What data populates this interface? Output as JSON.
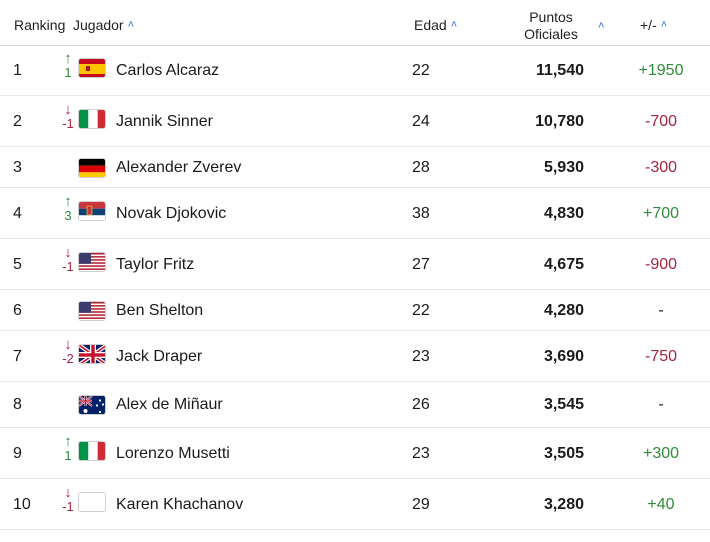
{
  "header": {
    "ranking": "Ranking",
    "player": "Jugador",
    "age": "Edad",
    "points_line1": "Puntos",
    "points_line2": "Oficiales",
    "diff": "+/-",
    "sort_icon": "chevron-up-icon",
    "accent_color": "#2d6cdf"
  },
  "colors": {
    "up": "#2e8b3a",
    "down": "#a3243f"
  },
  "rows": [
    {
      "rank": "1",
      "move_dir": "up",
      "move": "1",
      "flag": "es",
      "name": "Carlos Alcaraz",
      "age": "22",
      "points": "11,540",
      "diff": "+1950",
      "diff_type": "pos"
    },
    {
      "rank": "2",
      "move_dir": "down",
      "move": "-1",
      "flag": "it",
      "name": "Jannik Sinner",
      "age": "24",
      "points": "10,780",
      "diff": "-700",
      "diff_type": "neg"
    },
    {
      "rank": "3",
      "move_dir": "",
      "move": "",
      "flag": "de",
      "name": "Alexander Zverev",
      "age": "28",
      "points": "5,930",
      "diff": "-300",
      "diff_type": "neg"
    },
    {
      "rank": "4",
      "move_dir": "up",
      "move": "3",
      "flag": "rs",
      "name": "Novak Djokovic",
      "age": "38",
      "points": "4,830",
      "diff": "+700",
      "diff_type": "pos"
    },
    {
      "rank": "5",
      "move_dir": "down",
      "move": "-1",
      "flag": "us",
      "name": "Taylor Fritz",
      "age": "27",
      "points": "4,675",
      "diff": "-900",
      "diff_type": "neg"
    },
    {
      "rank": "6",
      "move_dir": "",
      "move": "",
      "flag": "us",
      "name": "Ben Shelton",
      "age": "22",
      "points": "4,280",
      "diff": "-",
      "diff_type": "neu"
    },
    {
      "rank": "7",
      "move_dir": "down",
      "move": "-2",
      "flag": "gb",
      "name": "Jack Draper",
      "age": "23",
      "points": "3,690",
      "diff": "-750",
      "diff_type": "neg"
    },
    {
      "rank": "8",
      "move_dir": "",
      "move": "",
      "flag": "au",
      "name": "Alex de Miñaur",
      "age": "26",
      "points": "3,545",
      "diff": "-",
      "diff_type": "neu"
    },
    {
      "rank": "9",
      "move_dir": "up",
      "move": "1",
      "flag": "it",
      "name": "Lorenzo Musetti",
      "age": "23",
      "points": "3,505",
      "diff": "+300",
      "diff_type": "pos"
    },
    {
      "rank": "10",
      "move_dir": "down",
      "move": "-1",
      "flag": "blank",
      "name": "Karen Khachanov",
      "age": "29",
      "points": "3,280",
      "diff": "+40",
      "diff_type": "pos"
    }
  ]
}
